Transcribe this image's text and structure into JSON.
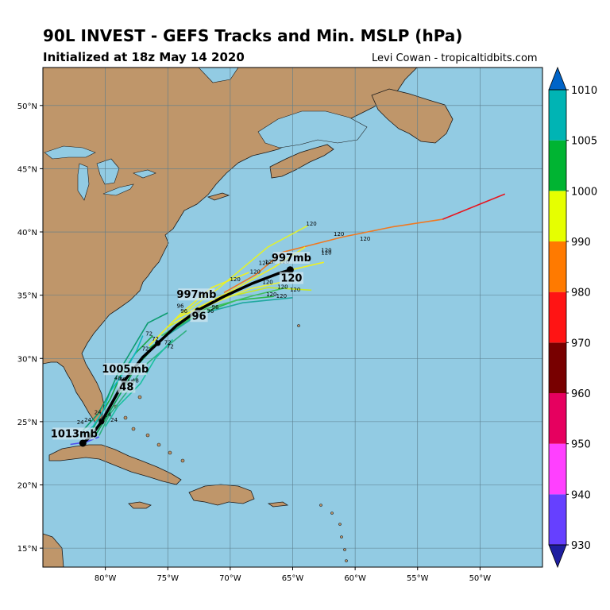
{
  "header": {
    "title": "90L INVEST - GEFS Tracks and Min. MSLP (hPa)",
    "subtitle": "Initialized at 18z May 14 2020",
    "credit": "Levi Cowan - tropicaltidbits.com"
  },
  "map": {
    "projection": "lat-lon",
    "lon_range": [
      -85,
      -45
    ],
    "lat_range": [
      13.5,
      53
    ],
    "lon_ticks": [
      {
        "value": -80,
        "label": "80°W"
      },
      {
        "value": -75,
        "label": "75°W"
      },
      {
        "value": -70,
        "label": "70°W"
      },
      {
        "value": -65,
        "label": "65°W"
      },
      {
        "value": -60,
        "label": "60°W"
      },
      {
        "value": -55,
        "label": "55°W"
      },
      {
        "value": -50,
        "label": "50°W"
      }
    ],
    "lat_ticks": [
      {
        "value": 15,
        "label": "15°N"
      },
      {
        "value": 20,
        "label": "20°N"
      },
      {
        "value": 25,
        "label": "25°N"
      },
      {
        "value": 30,
        "label": "30°N"
      },
      {
        "value": 35,
        "label": "35°N"
      },
      {
        "value": 40,
        "label": "40°N"
      },
      {
        "value": 45,
        "label": "45°N"
      },
      {
        "value": 50,
        "label": "50°N"
      }
    ],
    "grid": true,
    "colors": {
      "ocean": "#92cbe3",
      "land": "#bf966a",
      "coast": "#1a1a1a",
      "grid": "#5b7d8c"
    }
  },
  "mean_track": {
    "points": [
      [
        -81.8,
        23.3
      ],
      [
        -81.2,
        23.8
      ],
      [
        -80.3,
        25.0
      ],
      [
        -79.4,
        26.6
      ],
      [
        -78.5,
        28.2
      ],
      [
        -77.0,
        30.1
      ],
      [
        -75.8,
        31.2
      ],
      [
        -74.3,
        32.6
      ],
      [
        -72.6,
        33.8
      ],
      [
        -70.5,
        34.9
      ],
      [
        -68.3,
        35.9
      ],
      [
        -66.2,
        36.7
      ],
      [
        -65.2,
        37.0
      ]
    ],
    "labels": [
      {
        "text": "1013mb",
        "lon": -82.5,
        "lat": 23.9
      },
      {
        "text": "1005mb",
        "lon": -78.4,
        "lat": 29.0
      },
      {
        "text": "48",
        "lon": -78.3,
        "lat": 27.6
      },
      {
        "text": "997mb",
        "lon": -72.7,
        "lat": 34.9
      },
      {
        "text": "96",
        "lon": -72.5,
        "lat": 33.2
      },
      {
        "text": "997mb",
        "lon": -65.1,
        "lat": 37.8
      },
      {
        "text": "120",
        "lon": -65.1,
        "lat": 36.2
      }
    ]
  },
  "ensemble_members": [
    {
      "color": "#e8141e",
      "points": [
        [
          -53.0,
          41.0
        ],
        [
          -48.0,
          43.0
        ]
      ]
    },
    {
      "color": "#f07820",
      "points": [
        [
          -65.8,
          38.4
        ],
        [
          -61.0,
          39.6
        ],
        [
          -57.0,
          40.4
        ],
        [
          -53.0,
          41.0
        ]
      ]
    },
    {
      "color": "#f07820",
      "points": [
        [
          -70.5,
          35.2
        ],
        [
          -68.0,
          36.6
        ],
        [
          -65.8,
          38.4
        ]
      ]
    },
    {
      "color": "#e0f030",
      "points": [
        [
          -74.5,
          33.0
        ],
        [
          -71.0,
          35.5
        ],
        [
          -67.0,
          38.8
        ],
        [
          -63.8,
          40.5
        ]
      ]
    },
    {
      "color": "#f0f020",
      "points": [
        [
          -74.0,
          33.3
        ],
        [
          -70.0,
          35.3
        ],
        [
          -66.5,
          37.2
        ],
        [
          -64.0,
          38.8
        ]
      ]
    },
    {
      "color": "#f0f020",
      "points": [
        [
          -73.5,
          33.5
        ],
        [
          -69.0,
          35.6
        ],
        [
          -66.0,
          36.8
        ],
        [
          -62.5,
          37.6
        ]
      ]
    },
    {
      "color": "#c8e828",
      "points": [
        [
          -75.0,
          32.5
        ],
        [
          -70.5,
          34.8
        ],
        [
          -67.0,
          35.6
        ],
        [
          -63.5,
          35.4
        ]
      ]
    },
    {
      "color": "#e8f040",
      "points": [
        [
          -74.5,
          32.8
        ],
        [
          -71.5,
          34.3
        ],
        [
          -68.5,
          35.5
        ],
        [
          -66.0,
          36.0
        ]
      ]
    },
    {
      "color": "#28b848",
      "points": [
        [
          -76.5,
          30.8
        ],
        [
          -73.0,
          33.3
        ],
        [
          -69.5,
          34.6
        ],
        [
          -66.5,
          34.9
        ]
      ]
    },
    {
      "color": "#20a8a0",
      "points": [
        [
          -76.0,
          31.2
        ],
        [
          -72.5,
          33.5
        ],
        [
          -69.0,
          34.4
        ],
        [
          -65.0,
          34.8
        ]
      ]
    },
    {
      "color": "#40c060",
      "points": [
        [
          -75.5,
          31.8
        ],
        [
          -72.0,
          33.9
        ],
        [
          -68.0,
          35.0
        ],
        [
          -65.5,
          35.6
        ]
      ]
    },
    {
      "color": "#f0f020",
      "points": [
        [
          -76.5,
          31.0
        ],
        [
          -74.0,
          33.5
        ],
        [
          -71.5,
          35.6
        ],
        [
          -68.5,
          36.8
        ]
      ]
    },
    {
      "color": "#18a848",
      "points": [
        [
          -81.5,
          23.5
        ],
        [
          -80.8,
          24.8
        ],
        [
          -79.6,
          26.8
        ],
        [
          -78.8,
          28.6
        ],
        [
          -77.6,
          30.4
        ],
        [
          -76.2,
          31.8
        ]
      ]
    },
    {
      "color": "#10a050",
      "points": [
        [
          -81.0,
          23.6
        ],
        [
          -80.0,
          25.2
        ],
        [
          -78.8,
          27.2
        ],
        [
          -77.5,
          29.4
        ],
        [
          -75.8,
          31.2
        ],
        [
          -74.0,
          32.8
        ]
      ]
    },
    {
      "color": "#30b080",
      "points": [
        [
          -80.5,
          23.9
        ],
        [
          -79.7,
          25.5
        ],
        [
          -78.0,
          27.7
        ],
        [
          -77.0,
          29.3
        ],
        [
          -75.0,
          31.0
        ],
        [
          -73.5,
          32.2
        ]
      ]
    },
    {
      "color": "#10b8c0",
      "points": [
        [
          -82.3,
          23.7
        ],
        [
          -81.0,
          24.6
        ],
        [
          -80.2,
          25.8
        ],
        [
          -79.6,
          27.4
        ],
        [
          -78.3,
          29.2
        ],
        [
          -77.5,
          30.6
        ],
        [
          -77.0,
          31.8
        ]
      ]
    },
    {
      "color": "#1ac0a0",
      "points": [
        [
          -80.0,
          24.6
        ],
        [
          -79.0,
          26.2
        ],
        [
          -77.2,
          28.0
        ],
        [
          -76.0,
          30.0
        ],
        [
          -74.6,
          31.5
        ]
      ]
    },
    {
      "color": "#0c9c70",
      "points": [
        [
          -81.8,
          24.3
        ],
        [
          -80.6,
          25.6
        ],
        [
          -79.8,
          27.0
        ],
        [
          -79.0,
          28.8
        ],
        [
          -77.8,
          30.8
        ],
        [
          -76.6,
          32.8
        ],
        [
          -75.0,
          33.6
        ]
      ]
    },
    {
      "color": "#5050f0",
      "points": [
        [
          -82.8,
          23.2
        ],
        [
          -81.5,
          23.4
        ],
        [
          -80.5,
          23.8
        ]
      ]
    }
  ],
  "hour_labels": [
    {
      "text": "120",
      "lon": -63.5,
      "lat": 40.5
    },
    {
      "text": "120",
      "lon": -61.3,
      "lat": 39.7
    },
    {
      "text": "120",
      "lon": -59.2,
      "lat": 39.3
    },
    {
      "text": "120",
      "lon": -62.3,
      "lat": 38.4
    },
    {
      "text": "120",
      "lon": -62.3,
      "lat": 38.2
    },
    {
      "text": "120",
      "lon": -67.3,
      "lat": 37.4
    },
    {
      "text": "120",
      "lon": -66.8,
      "lat": 37.5
    },
    {
      "text": "120",
      "lon": -65.7,
      "lat": 37.5
    },
    {
      "text": "120",
      "lon": -68.0,
      "lat": 36.7
    },
    {
      "text": "120",
      "lon": -69.6,
      "lat": 36.1
    },
    {
      "text": "120",
      "lon": -67.0,
      "lat": 35.9
    },
    {
      "text": "120",
      "lon": -65.8,
      "lat": 35.5
    },
    {
      "text": "120",
      "lon": -64.8,
      "lat": 35.3
    },
    {
      "text": "120",
      "lon": -66.7,
      "lat": 34.9
    },
    {
      "text": "120",
      "lon": -65.9,
      "lat": 34.8
    },
    {
      "text": "96",
      "lon": -74.0,
      "lat": 34.0
    },
    {
      "text": "96",
      "lon": -73.7,
      "lat": 33.6
    },
    {
      "text": "96",
      "lon": -71.6,
      "lat": 33.6
    },
    {
      "text": "96",
      "lon": -71.2,
      "lat": 33.9
    },
    {
      "text": "72",
      "lon": -76.5,
      "lat": 31.8
    },
    {
      "text": "72",
      "lon": -76.0,
      "lat": 31.4
    },
    {
      "text": "72",
      "lon": -75.0,
      "lat": 31.1
    },
    {
      "text": "72",
      "lon": -74.8,
      "lat": 30.8
    },
    {
      "text": "72",
      "lon": -76.8,
      "lat": 30.6
    },
    {
      "text": "48",
      "lon": -79.0,
      "lat": 28.3
    },
    {
      "text": "48",
      "lon": -78.6,
      "lat": 28.2
    },
    {
      "text": "48",
      "lon": -78.0,
      "lat": 28.0
    },
    {
      "text": "48",
      "lon": -77.6,
      "lat": 28.1
    },
    {
      "text": "24",
      "lon": -80.6,
      "lat": 25.6
    },
    {
      "text": "24",
      "lon": -79.8,
      "lat": 25.4
    },
    {
      "text": "24",
      "lon": -81.4,
      "lat": 25.0
    },
    {
      "text": "24",
      "lon": -79.3,
      "lat": 25.0
    },
    {
      "text": "24",
      "lon": -82.0,
      "lat": 24.8
    }
  ],
  "colorbar": {
    "ticks": [
      {
        "value": 1010,
        "label": "1010"
      },
      {
        "value": 1005,
        "label": "1005"
      },
      {
        "value": 1000,
        "label": "1000"
      },
      {
        "value": 990,
        "label": "990"
      },
      {
        "value": 980,
        "label": "980"
      },
      {
        "value": 970,
        "label": "970"
      },
      {
        "value": 960,
        "label": "960"
      },
      {
        "value": 950,
        "label": "950"
      },
      {
        "value": 940,
        "label": "940"
      },
      {
        "value": 930,
        "label": "930"
      }
    ],
    "bands": [
      {
        "from": 930,
        "to": 940,
        "color": "#6640ff"
      },
      {
        "from": 940,
        "to": 950,
        "color": "#ff40ff"
      },
      {
        "from": 950,
        "to": 960,
        "color": "#e6005f"
      },
      {
        "from": 960,
        "to": 970,
        "color": "#780000"
      },
      {
        "from": 970,
        "to": 980,
        "color": "#ff1414"
      },
      {
        "from": 980,
        "to": 990,
        "color": "#ff7a00"
      },
      {
        "from": 990,
        "to": 1000,
        "color": "#e6ff00"
      },
      {
        "from": 1000,
        "to": 1005,
        "color": "#00b432"
      },
      {
        "from": 1005,
        "to": 1010,
        "color": "#00b4b4"
      }
    ],
    "top_arrow_color": "#0064c8",
    "bottom_arrow_color": "#1e1ea0"
  }
}
